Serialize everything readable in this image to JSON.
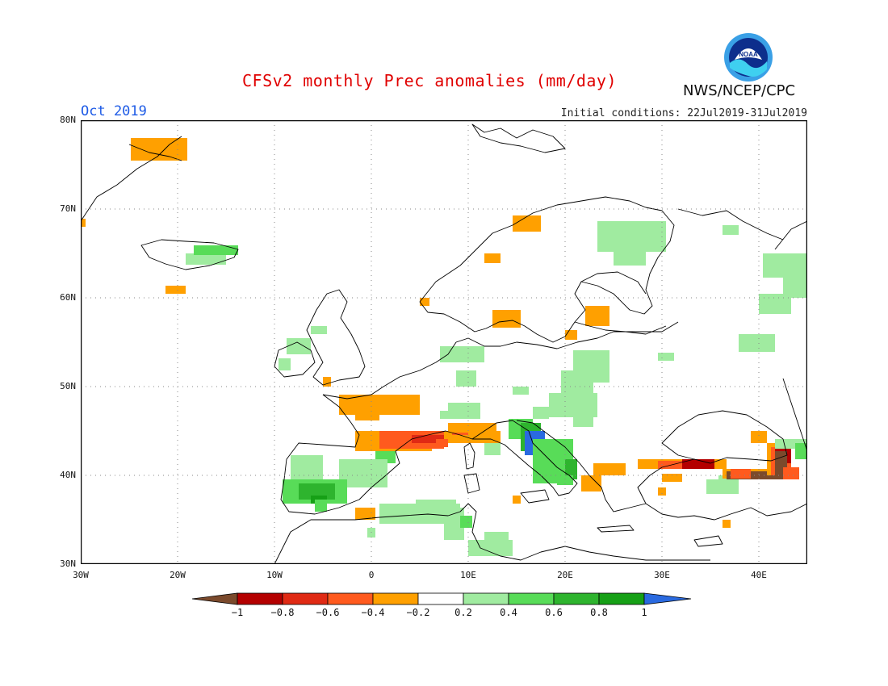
{
  "header": {
    "title": "CFSv2 monthly Prec anomalies (mm/day)",
    "agency": "NWS/NCEP/CPC",
    "logo_text": "NOAA",
    "month": "Oct 2019",
    "initial_conditions": "Initial conditions: 22Jul2019-31Jul2019"
  },
  "map": {
    "lat_labels": [
      "80N",
      "70N",
      "60N",
      "50N",
      "40N",
      "30N"
    ],
    "lon_labels": [
      "30W",
      "20W",
      "10W",
      "0",
      "10E",
      "20E",
      "30E",
      "40E"
    ],
    "lat_range": [
      30,
      80
    ],
    "lon_range": [
      -30,
      45
    ],
    "grid": "dotted"
  },
  "legend": {
    "labels": [
      "-1",
      "-0.8",
      "-0.6",
      "-0.4",
      "-0.2",
      "0.2",
      "0.4",
      "0.6",
      "0.8",
      "1"
    ],
    "colors": [
      "#7b4a2c",
      "#b40000",
      "#e02a14",
      "#ff5a1e",
      "#ffa000",
      "#ffffff",
      "#a0eba0",
      "#58dc58",
      "#2eb42e",
      "#16a016",
      "#2a6ae0"
    ]
  },
  "colors": {
    "orange": "#ffa000",
    "red_orange": "#ff5a1e",
    "red": "#e02a14",
    "dark_red": "#b40000",
    "brown": "#7b4a2c",
    "light_green": "#a0eba0",
    "green": "#58dc58",
    "mid_green": "#2eb42e",
    "dark_green": "#16a016",
    "blue": "#2a6ae0"
  }
}
